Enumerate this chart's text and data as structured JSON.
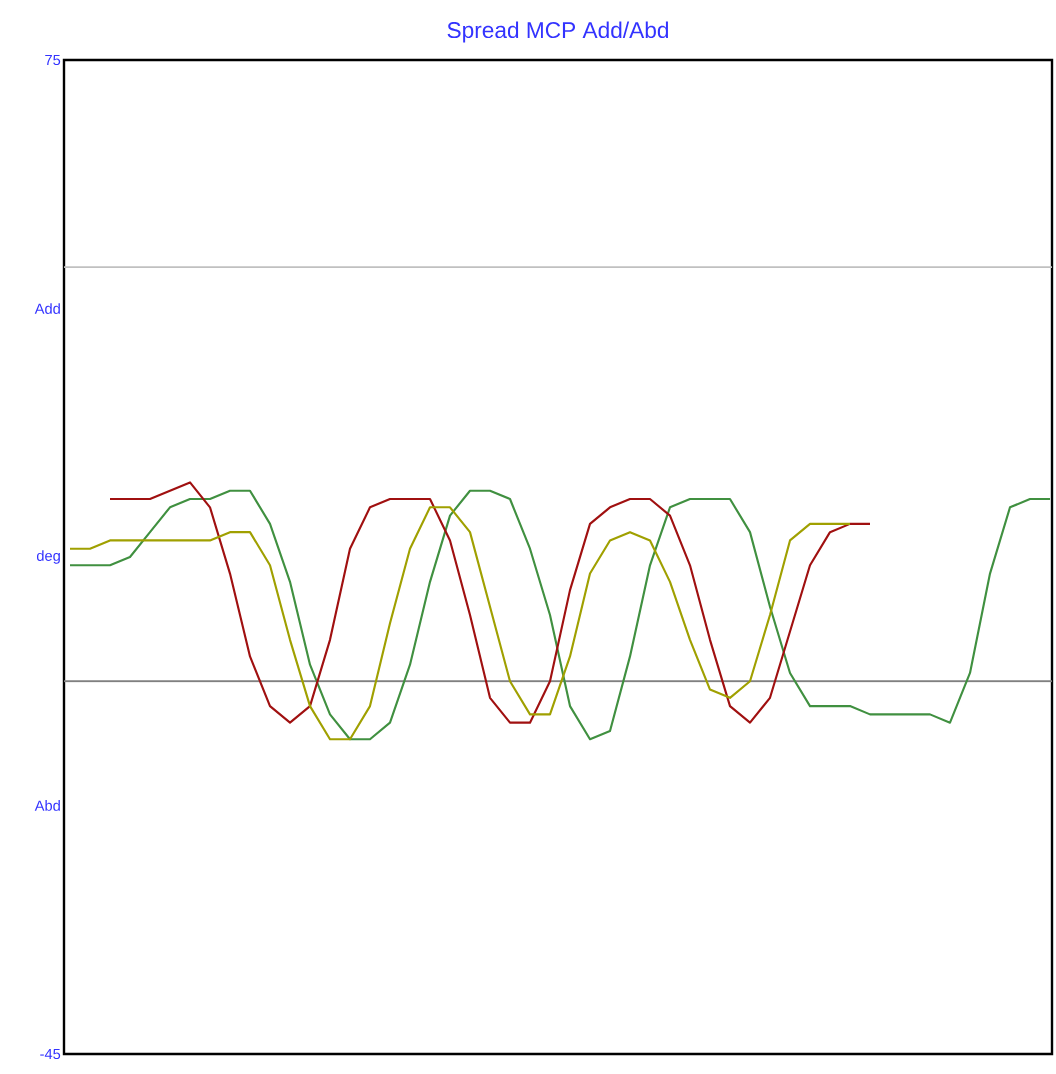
{
  "chart_data": {
    "type": "line",
    "title": "Spread MCP Add/Abd",
    "categories": [
      null,
      null,
      null,
      null,
      null,
      null,
      null,
      null,
      null,
      null,
      null,
      null,
      null,
      null,
      null,
      null,
      null,
      null,
      null,
      null,
      null,
      null,
      null,
      null,
      null,
      null,
      null,
      null,
      null,
      null,
      null,
      null,
      null,
      null,
      null,
      null,
      null,
      null,
      null,
      null,
      null,
      null,
      null,
      null,
      null,
      null,
      null,
      null,
      null,
      null
    ],
    "series": [
      {
        "color": "#409040",
        "values": [
          14,
          14,
          14,
          15,
          18,
          21,
          22,
          22,
          23,
          23,
          19,
          12,
          2,
          -4,
          -7,
          -7,
          -5,
          2,
          12,
          20,
          23,
          23,
          22,
          16,
          8,
          -3,
          -7,
          -6,
          3,
          14,
          21,
          22,
          22,
          22,
          18,
          9,
          1,
          -3,
          -3,
          -3,
          -4,
          -4,
          -4,
          -4,
          -5,
          1,
          13,
          21,
          22,
          22
        ]
      },
      {
        "color": "#a01010",
        "values": [
          null,
          null,
          22,
          22,
          22,
          23,
          24,
          21,
          13,
          3,
          -3,
          -5,
          -3,
          5,
          16,
          21,
          22,
          22,
          22,
          17,
          8,
          -2,
          -5,
          -5,
          0,
          11,
          19,
          21,
          22,
          22,
          20,
          14,
          5,
          -3,
          -5,
          -2,
          6,
          14,
          18,
          19,
          19,
          null,
          null,
          null,
          null,
          null,
          null,
          null,
          null,
          null
        ]
      },
      {
        "color": "#a0a000",
        "values": [
          16,
          16,
          17,
          17,
          17,
          17,
          17,
          17,
          18,
          18,
          14,
          5,
          -3,
          -7,
          -7,
          -3,
          7,
          16,
          21,
          21,
          18,
          9,
          0,
          -4,
          -4,
          3,
          13,
          17,
          18,
          17,
          12,
          5,
          -1,
          -2,
          0,
          8,
          17,
          19,
          19,
          19,
          null,
          null,
          null,
          null,
          null,
          null,
          null,
          null,
          null,
          null
        ]
      }
    ],
    "ylim": [
      -45,
      75
    ],
    "yticks": [
      75,
      {
        "value": 45,
        "label": "Add"
      },
      {
        "value": 15,
        "label": "deg"
      },
      {
        "value": -15,
        "label": "Abd"
      },
      -45
    ],
    "ref_lines": [
      {
        "axis": "y",
        "value": 50,
        "color": "#c0c0c0"
      },
      {
        "axis": "y",
        "value": 0,
        "color": "#808080"
      }
    ]
  }
}
